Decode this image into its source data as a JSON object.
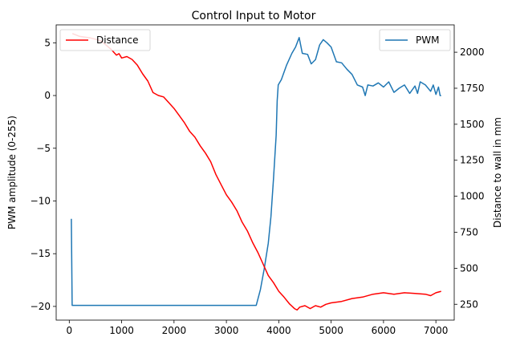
{
  "chart_data": {
    "type": "line",
    "title": "Control Input to Motor",
    "xlabel": "",
    "ylabel_left": "PWM amplitude (0-255)",
    "ylabel_right": "Distance to wall in mm",
    "xlim": [
      -250,
      7350
    ],
    "ylim_left": [
      -21.3,
      6.7
    ],
    "ylim_right": [
      140,
      2190
    ],
    "x_ticks": [
      0,
      1000,
      2000,
      3000,
      4000,
      5000,
      6000,
      7000
    ],
    "y_ticks_left": [
      5,
      0,
      -5,
      -10,
      -15,
      -20
    ],
    "y_ticks_left_labels": [
      "5",
      "0",
      "−5",
      "−10",
      "−15",
      "−20"
    ],
    "y_ticks_right": [
      2000,
      1750,
      1500,
      1250,
      1000,
      750,
      500,
      250
    ],
    "grid": false,
    "series": [
      {
        "name": "PWM",
        "axis": "left",
        "color": "#1f77b4",
        "legend_position": "top-right",
        "points": [
          [
            40,
            -11.7
          ],
          [
            55,
            -19.9
          ],
          [
            3570,
            -19.9
          ],
          [
            3650,
            -18.4
          ],
          [
            3720,
            -16.5
          ],
          [
            3800,
            -14.0
          ],
          [
            3850,
            -11.5
          ],
          [
            3900,
            -7.9
          ],
          [
            3950,
            -3.8
          ],
          [
            3970,
            -0.5
          ],
          [
            3990,
            1.0
          ],
          [
            4050,
            1.5
          ],
          [
            4150,
            2.9
          ],
          [
            4250,
            4.0
          ],
          [
            4320,
            4.6
          ],
          [
            4390,
            5.5
          ],
          [
            4450,
            4.0
          ],
          [
            4550,
            3.9
          ],
          [
            4620,
            3.0
          ],
          [
            4700,
            3.4
          ],
          [
            4780,
            4.8
          ],
          [
            4850,
            5.3
          ],
          [
            4920,
            5.0
          ],
          [
            5000,
            4.6
          ],
          [
            5100,
            3.2
          ],
          [
            5200,
            3.1
          ],
          [
            5300,
            2.5
          ],
          [
            5400,
            2.0
          ],
          [
            5500,
            1.0
          ],
          [
            5600,
            0.8
          ],
          [
            5650,
            0.0
          ],
          [
            5700,
            1.0
          ],
          [
            5800,
            0.9
          ],
          [
            5900,
            1.2
          ],
          [
            6000,
            0.8
          ],
          [
            6100,
            1.3
          ],
          [
            6200,
            0.3
          ],
          [
            6300,
            0.7
          ],
          [
            6400,
            1.0
          ],
          [
            6500,
            0.2
          ],
          [
            6600,
            0.9
          ],
          [
            6650,
            0.2
          ],
          [
            6700,
            1.3
          ],
          [
            6800,
            1.0
          ],
          [
            6900,
            0.4
          ],
          [
            6950,
            1.0
          ],
          [
            7000,
            0.1
          ],
          [
            7050,
            0.8
          ],
          [
            7080,
            0.0
          ],
          [
            7100,
            0.0
          ]
        ]
      },
      {
        "name": "Distance",
        "axis": "right",
        "color": "#ff0000",
        "legend_position": "top-left",
        "points": [
          [
            60,
            2130
          ],
          [
            200,
            2110
          ],
          [
            400,
            2100
          ],
          [
            600,
            2080
          ],
          [
            700,
            2050
          ],
          [
            800,
            2020
          ],
          [
            900,
            1980
          ],
          [
            950,
            1990
          ],
          [
            1000,
            1960
          ],
          [
            1100,
            1970
          ],
          [
            1200,
            1950
          ],
          [
            1300,
            1910
          ],
          [
            1400,
            1850
          ],
          [
            1500,
            1800
          ],
          [
            1600,
            1720
          ],
          [
            1700,
            1700
          ],
          [
            1800,
            1690
          ],
          [
            1900,
            1650
          ],
          [
            2000,
            1610
          ],
          [
            2100,
            1560
          ],
          [
            2200,
            1510
          ],
          [
            2300,
            1450
          ],
          [
            2400,
            1410
          ],
          [
            2500,
            1350
          ],
          [
            2600,
            1300
          ],
          [
            2700,
            1240
          ],
          [
            2800,
            1150
          ],
          [
            2900,
            1080
          ],
          [
            3000,
            1010
          ],
          [
            3100,
            960
          ],
          [
            3200,
            900
          ],
          [
            3300,
            820
          ],
          [
            3400,
            760
          ],
          [
            3500,
            680
          ],
          [
            3600,
            610
          ],
          [
            3700,
            530
          ],
          [
            3800,
            450
          ],
          [
            3900,
            400
          ],
          [
            4000,
            340
          ],
          [
            4100,
            300
          ],
          [
            4200,
            255
          ],
          [
            4300,
            220
          ],
          [
            4350,
            210
          ],
          [
            4400,
            230
          ],
          [
            4500,
            240
          ],
          [
            4600,
            220
          ],
          [
            4700,
            240
          ],
          [
            4800,
            230
          ],
          [
            4900,
            250
          ],
          [
            5000,
            260
          ],
          [
            5200,
            270
          ],
          [
            5400,
            290
          ],
          [
            5600,
            300
          ],
          [
            5800,
            320
          ],
          [
            6000,
            330
          ],
          [
            6200,
            320
          ],
          [
            6400,
            330
          ],
          [
            6600,
            325
          ],
          [
            6800,
            320
          ],
          [
            6900,
            310
          ],
          [
            7000,
            330
          ],
          [
            7100,
            340
          ]
        ]
      }
    ]
  }
}
